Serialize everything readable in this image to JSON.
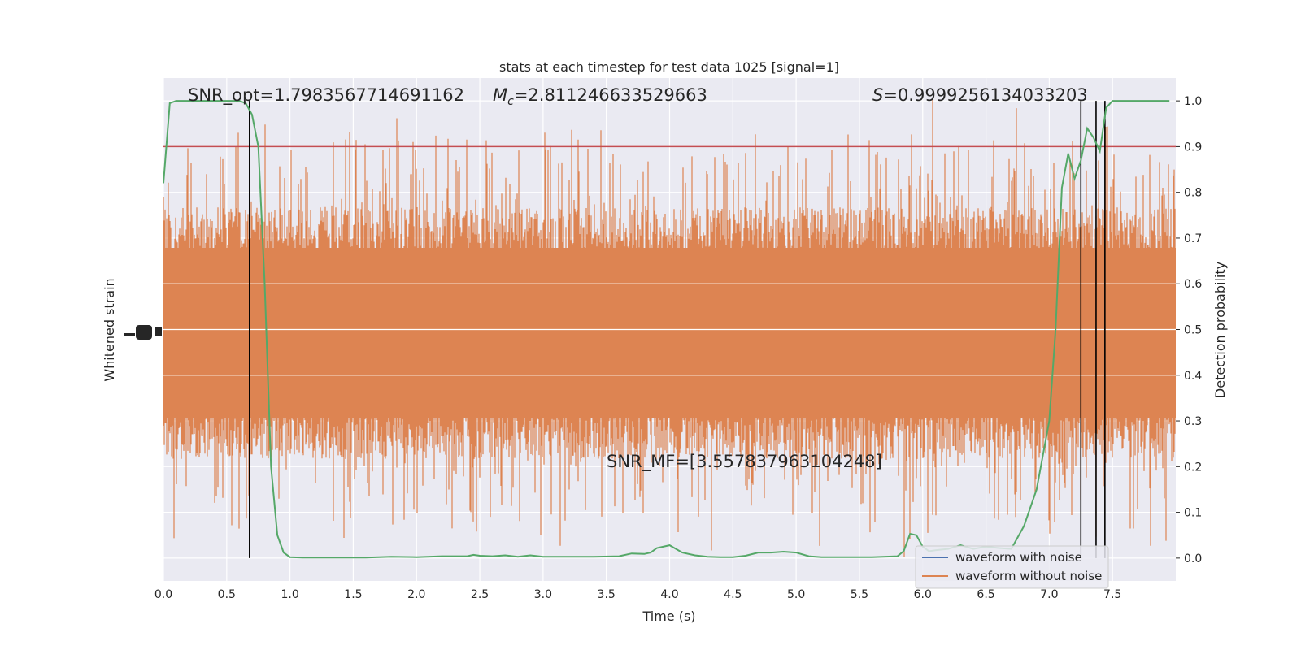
{
  "chart_data": {
    "type": "line",
    "title": "stats at each timestep for test data 1025 [signal=1]",
    "xlabel": "Time (s)",
    "ylabel_left": "Whitened strain",
    "ylabel_right": "Detection probability",
    "xlim": [
      0.0,
      8.0
    ],
    "ylim_right": [
      -0.05,
      1.05
    ],
    "x_ticks": [
      "0.0",
      "0.5",
      "1.0",
      "1.5",
      "2.0",
      "2.5",
      "3.0",
      "3.5",
      "4.0",
      "4.5",
      "5.0",
      "5.5",
      "6.0",
      "6.5",
      "7.0",
      "7.5"
    ],
    "y_ticks_right": [
      "0.0",
      "0.1",
      "0.2",
      "0.3",
      "0.4",
      "0.5",
      "0.6",
      "0.7",
      "0.8",
      "0.9",
      "1.0"
    ],
    "grid": true,
    "annotations": {
      "snr_opt": "SNR_opt=1.7983567714691162",
      "mc": "=2.811246633529663",
      "mc_symbol": "M",
      "mc_sub": "c",
      "s": "=0.9999256134033203",
      "s_symbol": "S",
      "snr_mf": "SNR_MF=[3.557837963104248]"
    },
    "threshold": 0.9,
    "vertical_lines": [
      0.68,
      7.25,
      7.37,
      7.44
    ],
    "series": [
      {
        "name": "waveform with noise",
        "color": "#4c72b0",
        "values": []
      },
      {
        "name": "waveform without noise",
        "color": "#dd8452",
        "values": []
      },
      {
        "color": "#55a868",
        "x": [
          0.0,
          0.05,
          0.1,
          0.15,
          0.2,
          0.25,
          0.3,
          0.35,
          0.4,
          0.45,
          0.5,
          0.55,
          0.6,
          0.65,
          0.7,
          0.75,
          0.8,
          0.85,
          0.9,
          0.95,
          1.0,
          1.1,
          1.2,
          1.4,
          1.6,
          1.8,
          2.0,
          2.2,
          2.4,
          2.45,
          2.5,
          2.6,
          2.7,
          2.8,
          2.9,
          3.0,
          3.2,
          3.4,
          3.6,
          3.7,
          3.8,
          3.85,
          3.9,
          4.0,
          4.05,
          4.1,
          4.2,
          4.3,
          4.4,
          4.5,
          4.6,
          4.7,
          4.8,
          4.9,
          5.0,
          5.1,
          5.2,
          5.4,
          5.6,
          5.8,
          5.85,
          5.9,
          5.95,
          6.0,
          6.05,
          6.1,
          6.2,
          6.3,
          6.4,
          6.5,
          6.6,
          6.7,
          6.8,
          6.9,
          7.0,
          7.05,
          7.1,
          7.15,
          7.2,
          7.25,
          7.3,
          7.35,
          7.4,
          7.45,
          7.5,
          7.55,
          7.6,
          7.75,
          7.95
        ],
        "values": [
          0.82,
          0.995,
          1.0,
          1.0,
          1.0,
          1.0,
          1.0,
          1.0,
          1.0,
          1.0,
          1.0,
          1.0,
          1.0,
          0.995,
          0.97,
          0.9,
          0.6,
          0.2,
          0.05,
          0.012,
          0.002,
          0.001,
          0.001,
          0.001,
          0.001,
          0.003,
          0.002,
          0.004,
          0.004,
          0.007,
          0.005,
          0.004,
          0.006,
          0.003,
          0.006,
          0.003,
          0.003,
          0.003,
          0.004,
          0.01,
          0.009,
          0.012,
          0.022,
          0.028,
          0.02,
          0.012,
          0.006,
          0.003,
          0.002,
          0.002,
          0.005,
          0.012,
          0.012,
          0.014,
          0.012,
          0.004,
          0.002,
          0.002,
          0.002,
          0.004,
          0.015,
          0.053,
          0.05,
          0.025,
          0.015,
          0.017,
          0.02,
          0.028,
          0.02,
          0.025,
          0.022,
          0.02,
          0.07,
          0.15,
          0.3,
          0.5,
          0.81,
          0.885,
          0.83,
          0.87,
          0.94,
          0.92,
          0.89,
          0.985,
          1.0,
          1.0,
          1.0,
          1.0,
          1.0
        ]
      }
    ]
  }
}
